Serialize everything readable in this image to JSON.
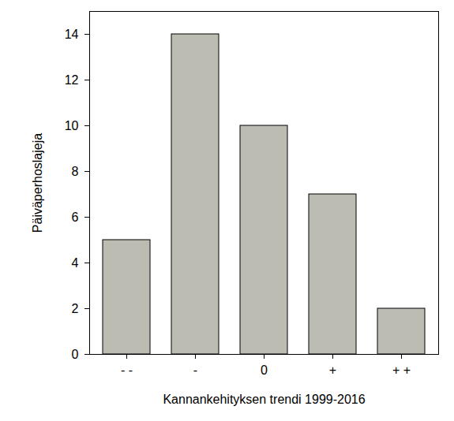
{
  "chart_data": {
    "type": "bar",
    "categories": [
      "- -",
      "-",
      "0",
      "+",
      "+ +"
    ],
    "values": [
      5,
      14,
      10,
      7,
      2
    ],
    "color": "#bdbcb2",
    "x_label": "Kannankehityksen trendi 1999-2016",
    "y_label": "Päiväperhoslajeja",
    "ylim": [
      0,
      15
    ],
    "yticks": [
      0,
      2,
      4,
      6,
      8,
      10,
      12,
      14
    ],
    "grid": false
  }
}
